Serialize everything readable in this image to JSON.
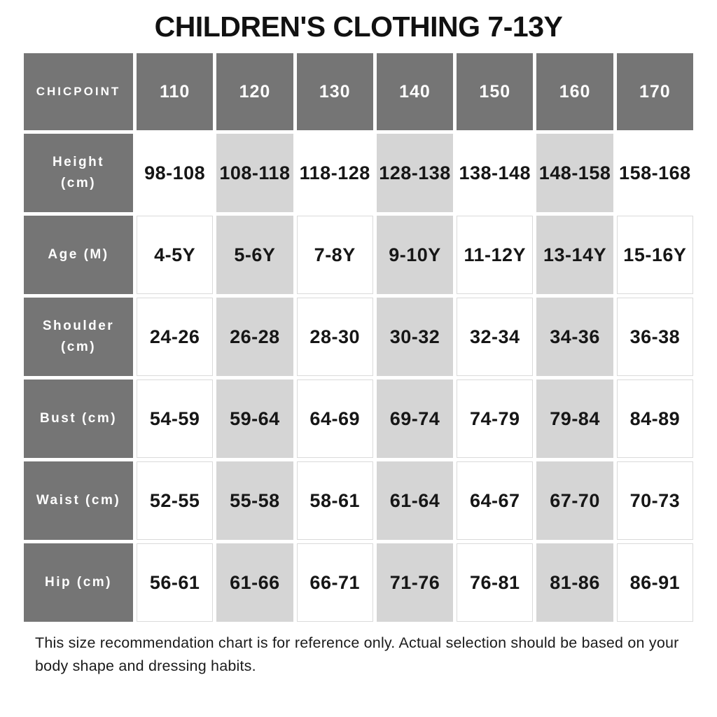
{
  "title": "CHILDREN'S CLOTHING 7-13Y",
  "footnote": "This size recommendation chart is for reference only. Actual selection should be based on your body shape and dressing habits.",
  "chart_data": {
    "type": "table",
    "corner_label": "CHICPOINT",
    "columns": [
      "110",
      "120",
      "130",
      "140",
      "150",
      "160",
      "170"
    ],
    "rows": [
      {
        "label": "Height (cm)",
        "values": [
          "98-108",
          "108-118",
          "118-128",
          "128-138",
          "138-148",
          "148-158",
          "158-168"
        ]
      },
      {
        "label": "Age (M)",
        "values": [
          "4-5Y",
          "5-6Y",
          "7-8Y",
          "9-10Y",
          "11-12Y",
          "13-14Y",
          "15-16Y"
        ]
      },
      {
        "label": "Shoulder (cm)",
        "values": [
          "24-26",
          "26-28",
          "28-30",
          "30-32",
          "32-34",
          "34-36",
          "36-38"
        ]
      },
      {
        "label": "Bust (cm)",
        "values": [
          "54-59",
          "59-64",
          "64-69",
          "69-74",
          "74-79",
          "79-84",
          "84-89"
        ]
      },
      {
        "label": "Waist (cm)",
        "values": [
          "52-55",
          "55-58",
          "58-61",
          "61-64",
          "64-67",
          "67-70",
          "70-73"
        ]
      },
      {
        "label": "Hip (cm)",
        "values": [
          "56-61",
          "61-66",
          "66-71",
          "71-76",
          "76-81",
          "81-86",
          "86-91"
        ]
      }
    ],
    "highlighted_columns": [
      "120",
      "140",
      "160"
    ],
    "layout_hints": {
      "highlight_pattern": "alternating columns 120/140/160 shaded",
      "first_data_row_borderless": true
    }
  },
  "colors": {
    "header_gray": "#757575",
    "highlight_gray": "#d5d5d5",
    "cell_border": "#dadada",
    "text_dark": "#161616",
    "header_text": "#ffffff"
  }
}
